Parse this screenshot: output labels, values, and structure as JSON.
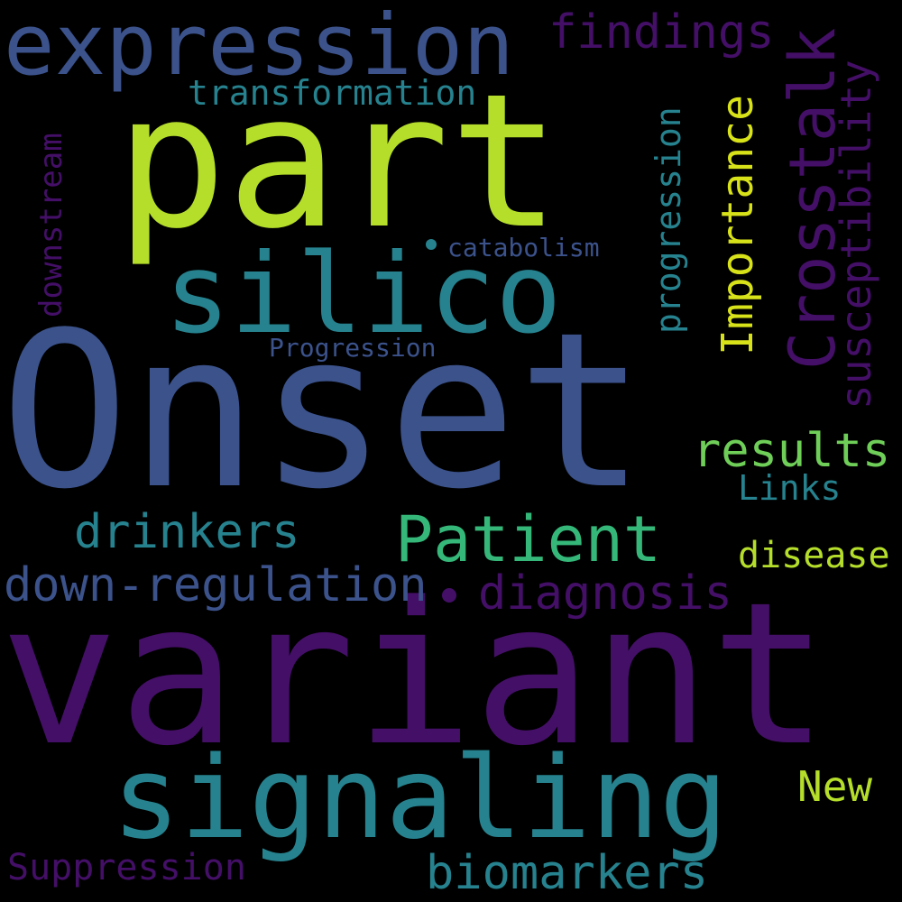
{
  "colors": {
    "background": "#000000",
    "yellow_green": "#b5de2b",
    "indigo": "#3b528b",
    "purple": "#440f67",
    "teal": "#26828e",
    "green": "#35b779",
    "light_green": "#6ece58",
    "yellow": "#d8e219"
  },
  "words": {
    "onset": "Onset",
    "variant": "variant",
    "part": "part",
    "signaling": "signaling",
    "silico": "silico",
    "expression": "expression",
    "crosstalk": "Crosstalk",
    "patient": "Patient",
    "down_regulation": "down-regulation",
    "diagnosis": "diagnosis",
    "drinkers": "drinkers",
    "biomarkers": "biomarkers",
    "results": "results",
    "importance": "Importance",
    "susceptibility": "susceptibility",
    "findings": "findings",
    "transformation": "transformation",
    "progression_lower": "progression",
    "new": "New",
    "disease": "disease",
    "suppression": "Suppression",
    "downstream": "downstream",
    "links": "Links",
    "catabolism": "catabolism",
    "progression_cap": "Progression"
  }
}
